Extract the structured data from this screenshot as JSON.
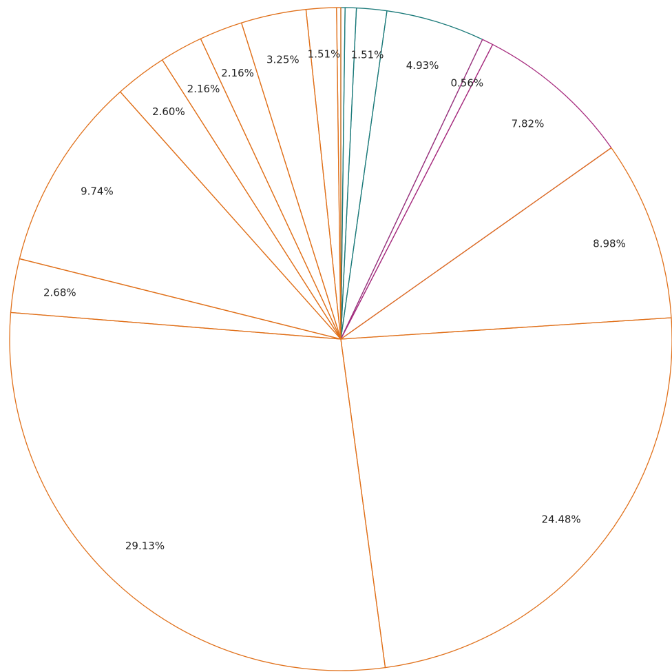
{
  "chart_data": {
    "type": "pie",
    "start": "top",
    "direction": "clockwise",
    "fill": "none",
    "values": [
      0.21,
      0.56,
      1.51,
      4.93,
      0.56,
      7.82,
      8.98,
      24.48,
      29.13,
      2.68,
      9.74,
      2.6,
      2.16,
      2.16,
      3.25,
      1.51,
      0.21
    ],
    "labels": [
      "",
      "",
      "1.51%",
      "4.93%",
      "0.56%",
      "7.82%",
      "8.98%",
      "24.48%",
      "29.13%",
      "2.68%",
      "9.74%",
      "2.60%",
      "2.16%",
      "2.16%",
      "3.25%",
      "1.51%",
      ""
    ],
    "colors": [
      "#1b7a7a",
      "#1b7a7a",
      "#1b7a7a",
      "#1b7a7a",
      "#a62b7e",
      "#a62b7e",
      "#e0701a",
      "#e0701a",
      "#e0701a",
      "#e0701a",
      "#e0701a",
      "#e0701a",
      "#e0701a",
      "#e0701a",
      "#e0701a",
      "#e0701a",
      "#e0701a"
    ]
  }
}
